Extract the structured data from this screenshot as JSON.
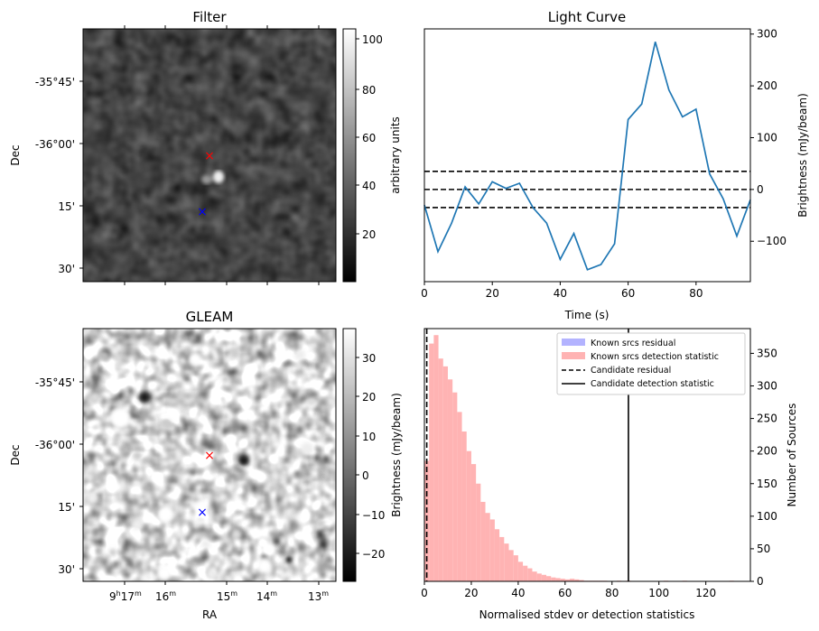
{
  "panels": {
    "filter": {
      "title": "Filter",
      "ylabel": "Dec",
      "dec_ticks": [
        "-35°45'",
        "-36°00'",
        "15'",
        "30'"
      ],
      "colorbar_label": "arbitrary units",
      "colorbar_ticks": [
        "100",
        "80",
        "60",
        "40",
        "20"
      ],
      "colorbar_range": [
        2,
        104
      ],
      "colormap": "gray"
    },
    "gleam": {
      "title": "GLEAM",
      "ylabel": "Dec",
      "xlabel": "RA",
      "dec_ticks": [
        "-35°45'",
        "-36°00'",
        "15'",
        "30'"
      ],
      "ra_ticks": [
        {
          "h": "9",
          "hsup": "h",
          "m": "17",
          "msup": "m"
        },
        {
          "h": "",
          "hsup": "",
          "m": "16",
          "msup": "m"
        },
        {
          "h": "",
          "hsup": "",
          "m": "15",
          "msup": "m"
        },
        {
          "h": "",
          "hsup": "",
          "m": "14",
          "msup": "m"
        },
        {
          "h": "",
          "hsup": "",
          "m": "13",
          "msup": "m"
        }
      ],
      "colorbar_label": "Brightness (mJy/beam)",
      "colorbar_ticks": [
        "30",
        "20",
        "10",
        "0",
        "−10",
        "−20"
      ],
      "colorbar_range": [
        -27,
        37
      ],
      "colormap": "gray"
    }
  },
  "markers": {
    "candidate_color": "#ff0000",
    "known_color": "#0000ff",
    "symbol": "×"
  },
  "chart_data": [
    {
      "type": "line",
      "title": "Light Curve",
      "xlabel": "Time (s)",
      "ylabel": "Brightness (mJy/beam)",
      "xlim": [
        0,
        96
      ],
      "ylim": [
        -178,
        310
      ],
      "xticks": [
        "0",
        "20",
        "40",
        "60",
        "80"
      ],
      "yticks": [
        "300",
        "200",
        "100",
        "0",
        "−100"
      ],
      "line_color": "#1f77b4",
      "series": [
        {
          "x": [
            0,
            4,
            8,
            12,
            16,
            20,
            24,
            28,
            32,
            36,
            40,
            44,
            48,
            52,
            56,
            60,
            64,
            68,
            72,
            76,
            80,
            84,
            88,
            92,
            96
          ],
          "values": [
            -30,
            -120,
            -65,
            5,
            -28,
            15,
            2,
            12,
            -35,
            -65,
            -135,
            -85,
            -155,
            -145,
            -105,
            135,
            165,
            285,
            192,
            140,
            155,
            30,
            -18,
            -90,
            -20
          ]
        }
      ],
      "hlines": [
        {
          "y": 35,
          "style": "dashed",
          "color": "#000000"
        },
        {
          "y": 0,
          "style": "dashed",
          "color": "#000000"
        },
        {
          "y": -35,
          "style": "dashed",
          "color": "#000000"
        }
      ]
    },
    {
      "type": "bar",
      "xlabel": "Normalised stdev or detection statistics",
      "ylabel": "Number of Sources",
      "xlim": [
        0,
        139
      ],
      "ylim": [
        0,
        388
      ],
      "xticks": [
        "0",
        "20",
        "40",
        "60",
        "80",
        "100",
        "120"
      ],
      "yticks": [
        "350",
        "300",
        "250",
        "200",
        "150",
        "100",
        "50",
        "0"
      ],
      "bin_width": 2,
      "series": [
        {
          "name": "Known srcs residual",
          "color": "#b3b3ff",
          "bin_start": 0,
          "counts": []
        },
        {
          "name": "Known srcs detection statistic",
          "color": "#ffb3b3",
          "bin_start": 0,
          "counts": [
            185,
            365,
            378,
            342,
            330,
            310,
            290,
            260,
            230,
            200,
            180,
            150,
            122,
            105,
            95,
            80,
            68,
            58,
            48,
            40,
            30,
            24,
            20,
            15,
            12,
            10,
            8,
            6,
            5,
            4,
            3,
            4,
            3,
            2,
            1,
            1,
            1,
            1,
            1,
            0,
            0,
            1,
            0,
            1,
            0,
            0,
            0,
            0,
            0,
            0,
            0,
            1,
            0,
            0,
            0,
            1,
            0,
            0,
            0,
            0,
            0,
            0,
            0,
            0,
            0,
            1,
            0,
            0,
            0
          ]
        }
      ],
      "vlines": [
        {
          "name": "Candidate residual",
          "x": 1,
          "style": "dashed",
          "color": "#000000"
        },
        {
          "name": "Candidate detection statistic",
          "x": 87,
          "style": "solid",
          "color": "#000000"
        }
      ],
      "legend": "top-right"
    }
  ]
}
